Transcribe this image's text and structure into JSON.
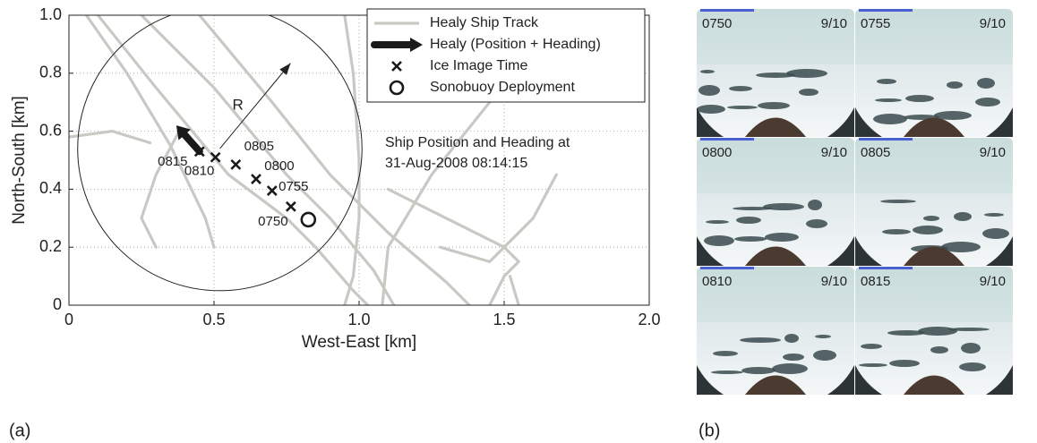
{
  "chart_data": {
    "type": "scatter",
    "xlabel": "West-East [km]",
    "ylabel": "North-South [km]",
    "xlim": [
      0,
      2.0
    ],
    "ylim": [
      0,
      1.0
    ],
    "xticks": [
      0,
      0.5,
      {
        "value": 1.0,
        "label": "1.0"
      },
      1.5,
      {
        "value": 2.0,
        "label": "2.0"
      }
    ],
    "yticks": [
      0,
      0.2,
      0.4,
      0.6,
      0.8,
      {
        "value": 1.0,
        "label": "1.0"
      }
    ],
    "grid": true,
    "legend": "upper right",
    "annotation": [
      "Ship Position and Heading at",
      "31-Aug-2008 08:14:15"
    ],
    "circle": {
      "x": 0.52,
      "y": 0.54,
      "radius": 0.49,
      "label": "R"
    },
    "series": [
      {
        "name": "Healy Ship Track",
        "color": "#c9c9c4",
        "style": "line",
        "x": [
          0.06,
          0.2,
          0.35,
          0.47,
          0.5,
          null,
          0.1,
          0.3,
          0.55,
          0.75,
          0.85,
          0.98,
          1.03,
          null,
          0.25,
          0.5,
          0.75,
          0.9,
          1.05,
          1.12,
          null,
          0.45,
          0.7,
          0.9,
          1.1,
          1.3,
          1.38,
          null,
          0.95,
          0.98,
          1.0,
          1.0,
          0.98,
          0.95,
          null,
          1.08,
          1.1,
          1.25,
          1.45,
          1.5,
          null,
          0.0,
          0.15,
          0.28,
          null,
          0.38,
          0.3,
          0.25,
          0.3,
          null,
          1.45,
          1.5,
          1.55,
          1.5,
          1.3,
          1.1,
          null,
          1.28,
          1.45,
          1.6,
          1.68,
          null,
          1.55,
          1.52
        ],
        "y": [
          1.0,
          0.8,
          0.55,
          0.3,
          0.2,
          null,
          1.0,
          0.75,
          0.45,
          0.3,
          0.2,
          0.05,
          0.0,
          null,
          1.0,
          0.75,
          0.45,
          0.3,
          0.12,
          0.0,
          null,
          1.0,
          0.7,
          0.45,
          0.25,
          0.08,
          0.0,
          null,
          1.0,
          0.8,
          0.5,
          0.3,
          0.1,
          0.0,
          null,
          0.0,
          0.2,
          0.45,
          0.7,
          0.75,
          null,
          0.58,
          0.6,
          0.56,
          null,
          0.6,
          0.45,
          0.3,
          0.2,
          null,
          0.0,
          0.1,
          0.15,
          0.2,
          0.3,
          0.4,
          null,
          0.2,
          0.15,
          0.3,
          0.45,
          null,
          0.0,
          0.1
        ]
      },
      {
        "name": "Healy (Position + Heading)",
        "color": "#1a1a1a",
        "style": "arrow",
        "x": [
          0.45,
          0.37
        ],
        "y": [
          0.53,
          0.62
        ]
      },
      {
        "name": "Ice Image Time",
        "color": "#1a1a1a",
        "style": "x",
        "x": [
          0.765,
          0.7,
          0.645,
          0.575,
          0.505,
          0.45
        ],
        "y": [
          0.34,
          0.395,
          0.435,
          0.485,
          0.51,
          0.53
        ],
        "labels": [
          "0750",
          "0755",
          "0800",
          "0805",
          "0810",
          "0815"
        ]
      },
      {
        "name": "Sonobuoy Deployment",
        "color": "#1a1a1a",
        "style": "o",
        "x": [
          0.825
        ],
        "y": [
          0.295
        ]
      }
    ]
  },
  "photo_panel": {
    "panels": [
      {
        "time": "0750",
        "fraction": "9/10"
      },
      {
        "time": "0755",
        "fraction": "9/10"
      },
      {
        "time": "0800",
        "fraction": "9/10"
      },
      {
        "time": "0805",
        "fraction": "9/10"
      },
      {
        "time": "0810",
        "fraction": "9/10"
      },
      {
        "time": "0815",
        "fraction": "9/10"
      }
    ]
  },
  "panel_labels": [
    "(a)",
    "(b)"
  ]
}
